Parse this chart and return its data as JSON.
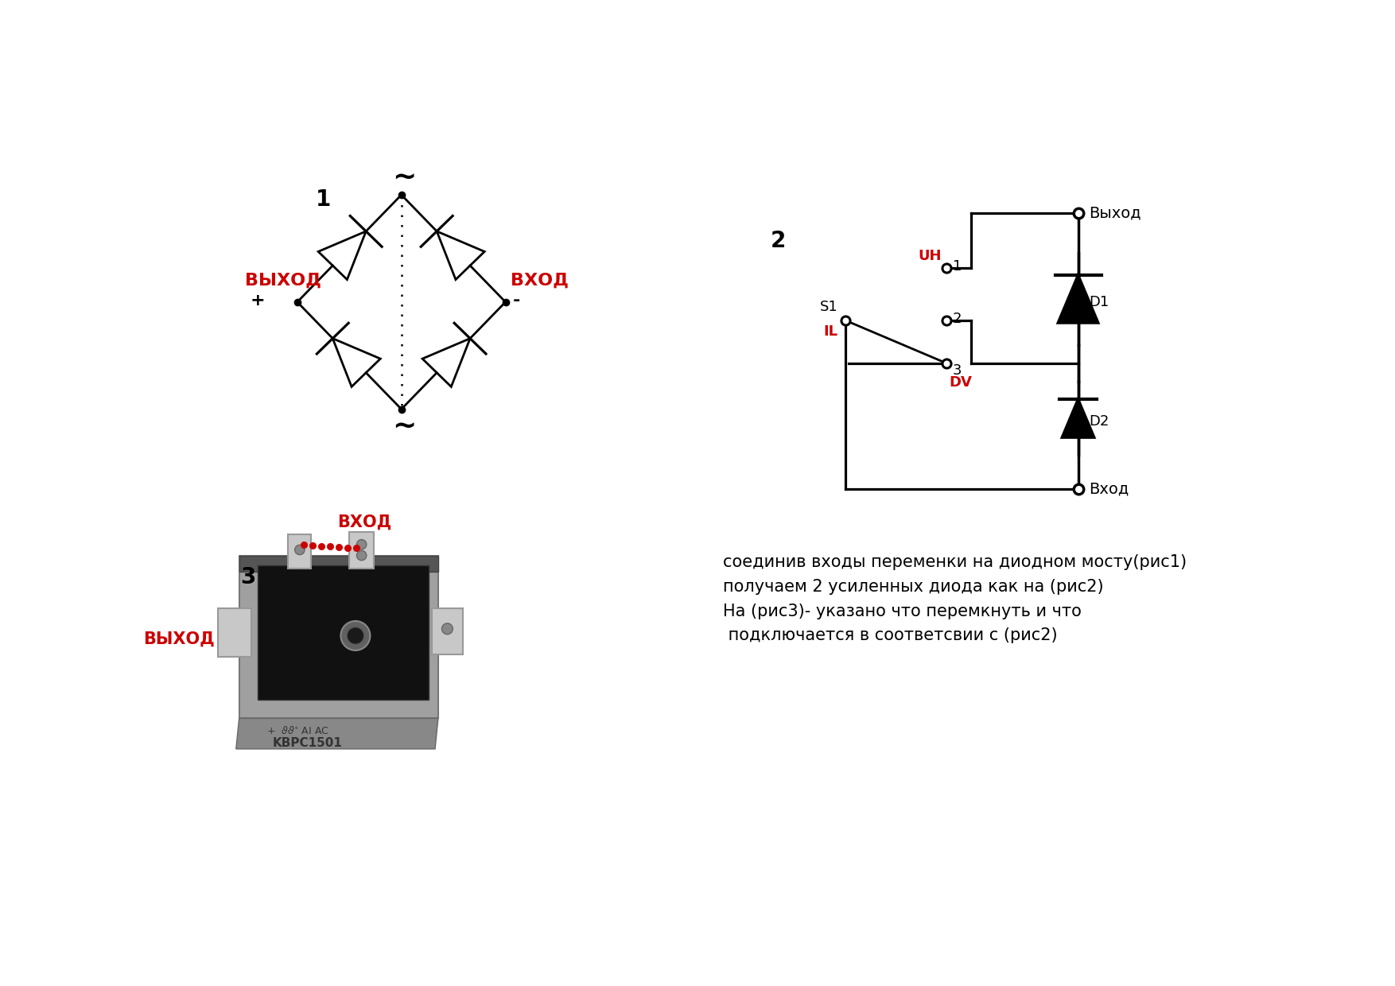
{
  "bg_color": "#ffffff",
  "fig_label1": "1",
  "fig_label2": "2",
  "fig_label3": "3",
  "text_vyhod_red": "ВЫХОД",
  "text_vhod_red": "ВХОД",
  "text_plus": "+",
  "text_minus": "-",
  "text_Vyhod": "Выход",
  "text_Vhod": "Вход",
  "text_UH": "UH",
  "text_1": "1",
  "text_2": "2",
  "text_3": "3",
  "text_S1": "S1",
  "text_IL": "IL",
  "text_DV": "DV",
  "text_D1": "D1",
  "text_D2": "D2",
  "text_VHOD_img": "ВХОД",
  "text_VYHOD_img": "ВЫХОД",
  "description_lines": [
    "соединив входы переменки на диодном мосту(рис1)",
    "получаем 2 усиленных диода как на (рис2)",
    "На (рис3)- указано что перемкнуть и что",
    " подключается в соответсвии с (рис2)"
  ],
  "red_color": "#cc0000",
  "black_color": "#000000",
  "lw": 2.0,
  "dot_size": 6,
  "tilde_fontsize": 26,
  "label_fontsize": 20,
  "text_fontsize": 14,
  "desc_fontsize": 15
}
